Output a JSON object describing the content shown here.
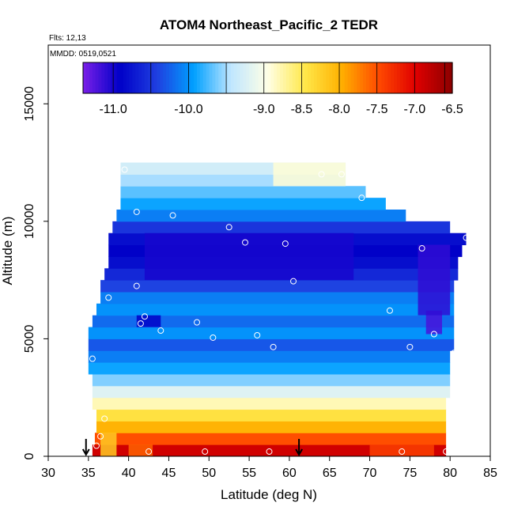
{
  "chart_data": {
    "type": "heatmap",
    "title": "ATOM4 Northeast_Pacific_2 TEDR",
    "note_flights": "Flts: 12,13",
    "note_dates": "MMDD: 0519,0521",
    "xlabel": "Latitude (deg N)",
    "ylabel": "Altitude (m)",
    "xlim": [
      30,
      85
    ],
    "ylim": [
      0,
      17500
    ],
    "x_ticks": [
      30,
      35,
      40,
      45,
      50,
      55,
      60,
      65,
      70,
      75,
      80,
      85
    ],
    "y_ticks": [
      0,
      5000,
      10000,
      15000
    ],
    "colorbar": {
      "min": -11.4,
      "max": -6.5,
      "tick_values": [
        -11.0,
        -10.0,
        -9.0,
        -8.5,
        -8.0,
        -7.5,
        -7.0,
        -6.5
      ],
      "tick_labels": [
        "-11.0",
        "-10.0",
        "-9.0",
        "-8.5",
        "-8.0",
        "-7.5",
        "-7.0",
        "-6.5"
      ],
      "divider_values": [
        -11.0,
        -10.5,
        -10.0,
        -9.5,
        -9.0,
        -8.5,
        -8.0,
        -7.5,
        -7.0,
        -6.6
      ],
      "colors": [
        "#7a1fe8",
        "#0000c8",
        "#1f3fe0",
        "#00a0ff",
        "#bfe6ff",
        "#ffffe6",
        "#ffe84a",
        "#ffb000",
        "#ff4a00",
        "#e00000",
        "#8b0000"
      ]
    },
    "layers": [
      {
        "alt": [
          0,
          500
        ],
        "lat": [
          35.5,
          79.5
        ],
        "value": -6.9
      },
      {
        "alt": [
          500,
          1000
        ],
        "lat": [
          35.8,
          79.5
        ],
        "value": -7.5
      },
      {
        "alt": [
          1000,
          1500
        ],
        "lat": [
          36.0,
          79.5
        ],
        "value": -8.0
      },
      {
        "alt": [
          1500,
          2000
        ],
        "lat": [
          36.0,
          79.5
        ],
        "value": -8.4
      },
      {
        "alt": [
          2000,
          2500
        ],
        "lat": [
          35.5,
          79.5
        ],
        "value": -8.8
      },
      {
        "alt": [
          2500,
          3000
        ],
        "lat": [
          35.5,
          80.0
        ],
        "value": -9.2
      },
      {
        "alt": [
          3000,
          3500
        ],
        "lat": [
          35.5,
          80.0
        ],
        "value": -9.6
      },
      {
        "alt": [
          3500,
          4000
        ],
        "lat": [
          35.0,
          80.0
        ],
        "value": -9.9
      },
      {
        "alt": [
          4000,
          4500
        ],
        "lat": [
          35.0,
          80.0
        ],
        "value": -10.1
      },
      {
        "alt": [
          4500,
          5000
        ],
        "lat": [
          35.0,
          80.5
        ],
        "value": -10.3
      },
      {
        "alt": [
          5000,
          5500
        ],
        "lat": [
          35.0,
          80.5
        ],
        "value": -10.0
      },
      {
        "alt": [
          5500,
          6000
        ],
        "lat": [
          35.5,
          80.5
        ],
        "value": -10.2
      },
      {
        "alt": [
          6000,
          6500
        ],
        "lat": [
          36.0,
          80.5
        ],
        "value": -10.0
      },
      {
        "alt": [
          6500,
          7000
        ],
        "lat": [
          36.5,
          80.5
        ],
        "value": -10.1
      },
      {
        "alt": [
          7000,
          7500
        ],
        "lat": [
          36.5,
          80.5
        ],
        "value": -10.4
      },
      {
        "alt": [
          7500,
          8000
        ],
        "lat": [
          37.0,
          81.0
        ],
        "value": -10.6
      },
      {
        "alt": [
          8000,
          8500
        ],
        "lat": [
          37.5,
          81.0
        ],
        "value": -10.8
      },
      {
        "alt": [
          8500,
          9000
        ],
        "lat": [
          37.5,
          81.5
        ],
        "value": -10.9
      },
      {
        "alt": [
          9000,
          9500
        ],
        "lat": [
          37.5,
          82.0
        ],
        "value": -10.8
      },
      {
        "alt": [
          9500,
          10000
        ],
        "lat": [
          38.0,
          80.0
        ],
        "value": -10.5
      },
      {
        "alt": [
          10000,
          10500
        ],
        "lat": [
          38.5,
          74.5
        ],
        "value": -10.1
      },
      {
        "alt": [
          10500,
          11000
        ],
        "lat": [
          39.0,
          72.0
        ],
        "value": -9.9
      },
      {
        "alt": [
          11000,
          11500
        ],
        "lat": [
          39.0,
          69.5
        ],
        "value": -9.7
      },
      {
        "alt": [
          11500,
          12000
        ],
        "lat": [
          39.0,
          67.0
        ],
        "value": -9.5
      },
      {
        "alt": [
          12000,
          12500
        ],
        "lat": [
          39.0,
          67.0
        ],
        "value": -9.3
      }
    ],
    "patches": [
      {
        "alt": [
          5500,
          6000
        ],
        "lat": [
          41.0,
          44.0
        ],
        "value": -10.9
      },
      {
        "alt": [
          7500,
          9500
        ],
        "lat": [
          42.0,
          68.0
        ],
        "value": -11.0
      },
      {
        "alt": [
          5200,
          6200
        ],
        "lat": [
          77.0,
          79.0
        ],
        "value": -11.2
      },
      {
        "alt": [
          6000,
          9000
        ],
        "lat": [
          76.0,
          80.0
        ],
        "value": -11.1
      },
      {
        "alt": [
          11500,
          12500
        ],
        "lat": [
          58.0,
          67.0
        ],
        "value": -8.9
      },
      {
        "alt": [
          0,
          1000
        ],
        "lat": [
          36.5,
          38.5
        ],
        "value": -8.2
      },
      {
        "alt": [
          0,
          500
        ],
        "lat": [
          40.0,
          43.0
        ],
        "value": -7.6
      },
      {
        "alt": [
          0,
          500
        ],
        "lat": [
          70.0,
          78.0
        ],
        "value": -7.4
      }
    ],
    "observations": [
      {
        "lat": 39.5,
        "alt": 12200
      },
      {
        "lat": 64.0,
        "alt": 12000
      },
      {
        "lat": 66.5,
        "alt": 12000
      },
      {
        "lat": 69.0,
        "alt": 11000
      },
      {
        "lat": 41.0,
        "alt": 10400
      },
      {
        "lat": 45.5,
        "alt": 10250
      },
      {
        "lat": 52.5,
        "alt": 9750
      },
      {
        "lat": 54.5,
        "alt": 9100
      },
      {
        "lat": 59.5,
        "alt": 9050
      },
      {
        "lat": 76.5,
        "alt": 8850
      },
      {
        "lat": 82.0,
        "alt": 9300
      },
      {
        "lat": 41.0,
        "alt": 7250
      },
      {
        "lat": 60.5,
        "alt": 7450
      },
      {
        "lat": 37.5,
        "alt": 6750
      },
      {
        "lat": 72.5,
        "alt": 6200
      },
      {
        "lat": 42.0,
        "alt": 5950
      },
      {
        "lat": 41.5,
        "alt": 5650
      },
      {
        "lat": 48.5,
        "alt": 5700
      },
      {
        "lat": 44.0,
        "alt": 5350
      },
      {
        "lat": 50.5,
        "alt": 5050
      },
      {
        "lat": 56.0,
        "alt": 5150
      },
      {
        "lat": 58.0,
        "alt": 4650
      },
      {
        "lat": 75.0,
        "alt": 4650
      },
      {
        "lat": 78.0,
        "alt": 5200
      },
      {
        "lat": 80.5,
        "alt": 4400
      },
      {
        "lat": 35.5,
        "alt": 4150
      },
      {
        "lat": 37.0,
        "alt": 1600
      },
      {
        "lat": 36.5,
        "alt": 850
      },
      {
        "lat": 36.0,
        "alt": 450
      },
      {
        "lat": 49.5,
        "alt": 200
      },
      {
        "lat": 57.5,
        "alt": 200
      },
      {
        "lat": 74.0,
        "alt": 200
      },
      {
        "lat": 79.5,
        "alt": 200
      },
      {
        "lat": 42.5,
        "alt": 200
      }
    ],
    "arrows_lat": [
      34.7,
      61.2
    ],
    "grid": false
  }
}
